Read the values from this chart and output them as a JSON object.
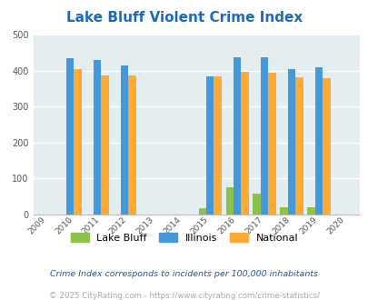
{
  "title": "Lake Bluff Violent Crime Index",
  "all_years": [
    2009,
    2010,
    2011,
    2012,
    2013,
    2014,
    2015,
    2016,
    2017,
    2018,
    2019,
    2020
  ],
  "early_years": [
    2010,
    2011,
    2012
  ],
  "late_years": [
    2015,
    2016,
    2017,
    2018,
    2019
  ],
  "lake_bluff_late": [
    18,
    75,
    57,
    20,
    20
  ],
  "illinois_early": [
    435,
    428,
    415
  ],
  "illinois_late": [
    383,
    438,
    438,
    405,
    408
  ],
  "national_early": [
    405,
    387,
    387
  ],
  "national_late": [
    383,
    397,
    394,
    380,
    379
  ],
  "bar_color_lake_bluff": "#8bc34a",
  "bar_color_illinois": "#4499dd",
  "bar_color_national": "#ffaa33",
  "bg_color": "#e4eef0",
  "ylim": [
    0,
    500
  ],
  "yticks": [
    0,
    100,
    200,
    300,
    400,
    500
  ],
  "legend_labels": [
    "Lake Bluff",
    "Illinois",
    "National"
  ],
  "footnote1": "Crime Index corresponds to incidents per 100,000 inhabitants",
  "footnote2": "© 2025 CityRating.com - https://www.cityrating.com/crime-statistics/",
  "title_color": "#1b6abf",
  "footnote1_color": "#2255aa",
  "footnote2_color": "#aaaaaa",
  "bar_width": 0.28
}
